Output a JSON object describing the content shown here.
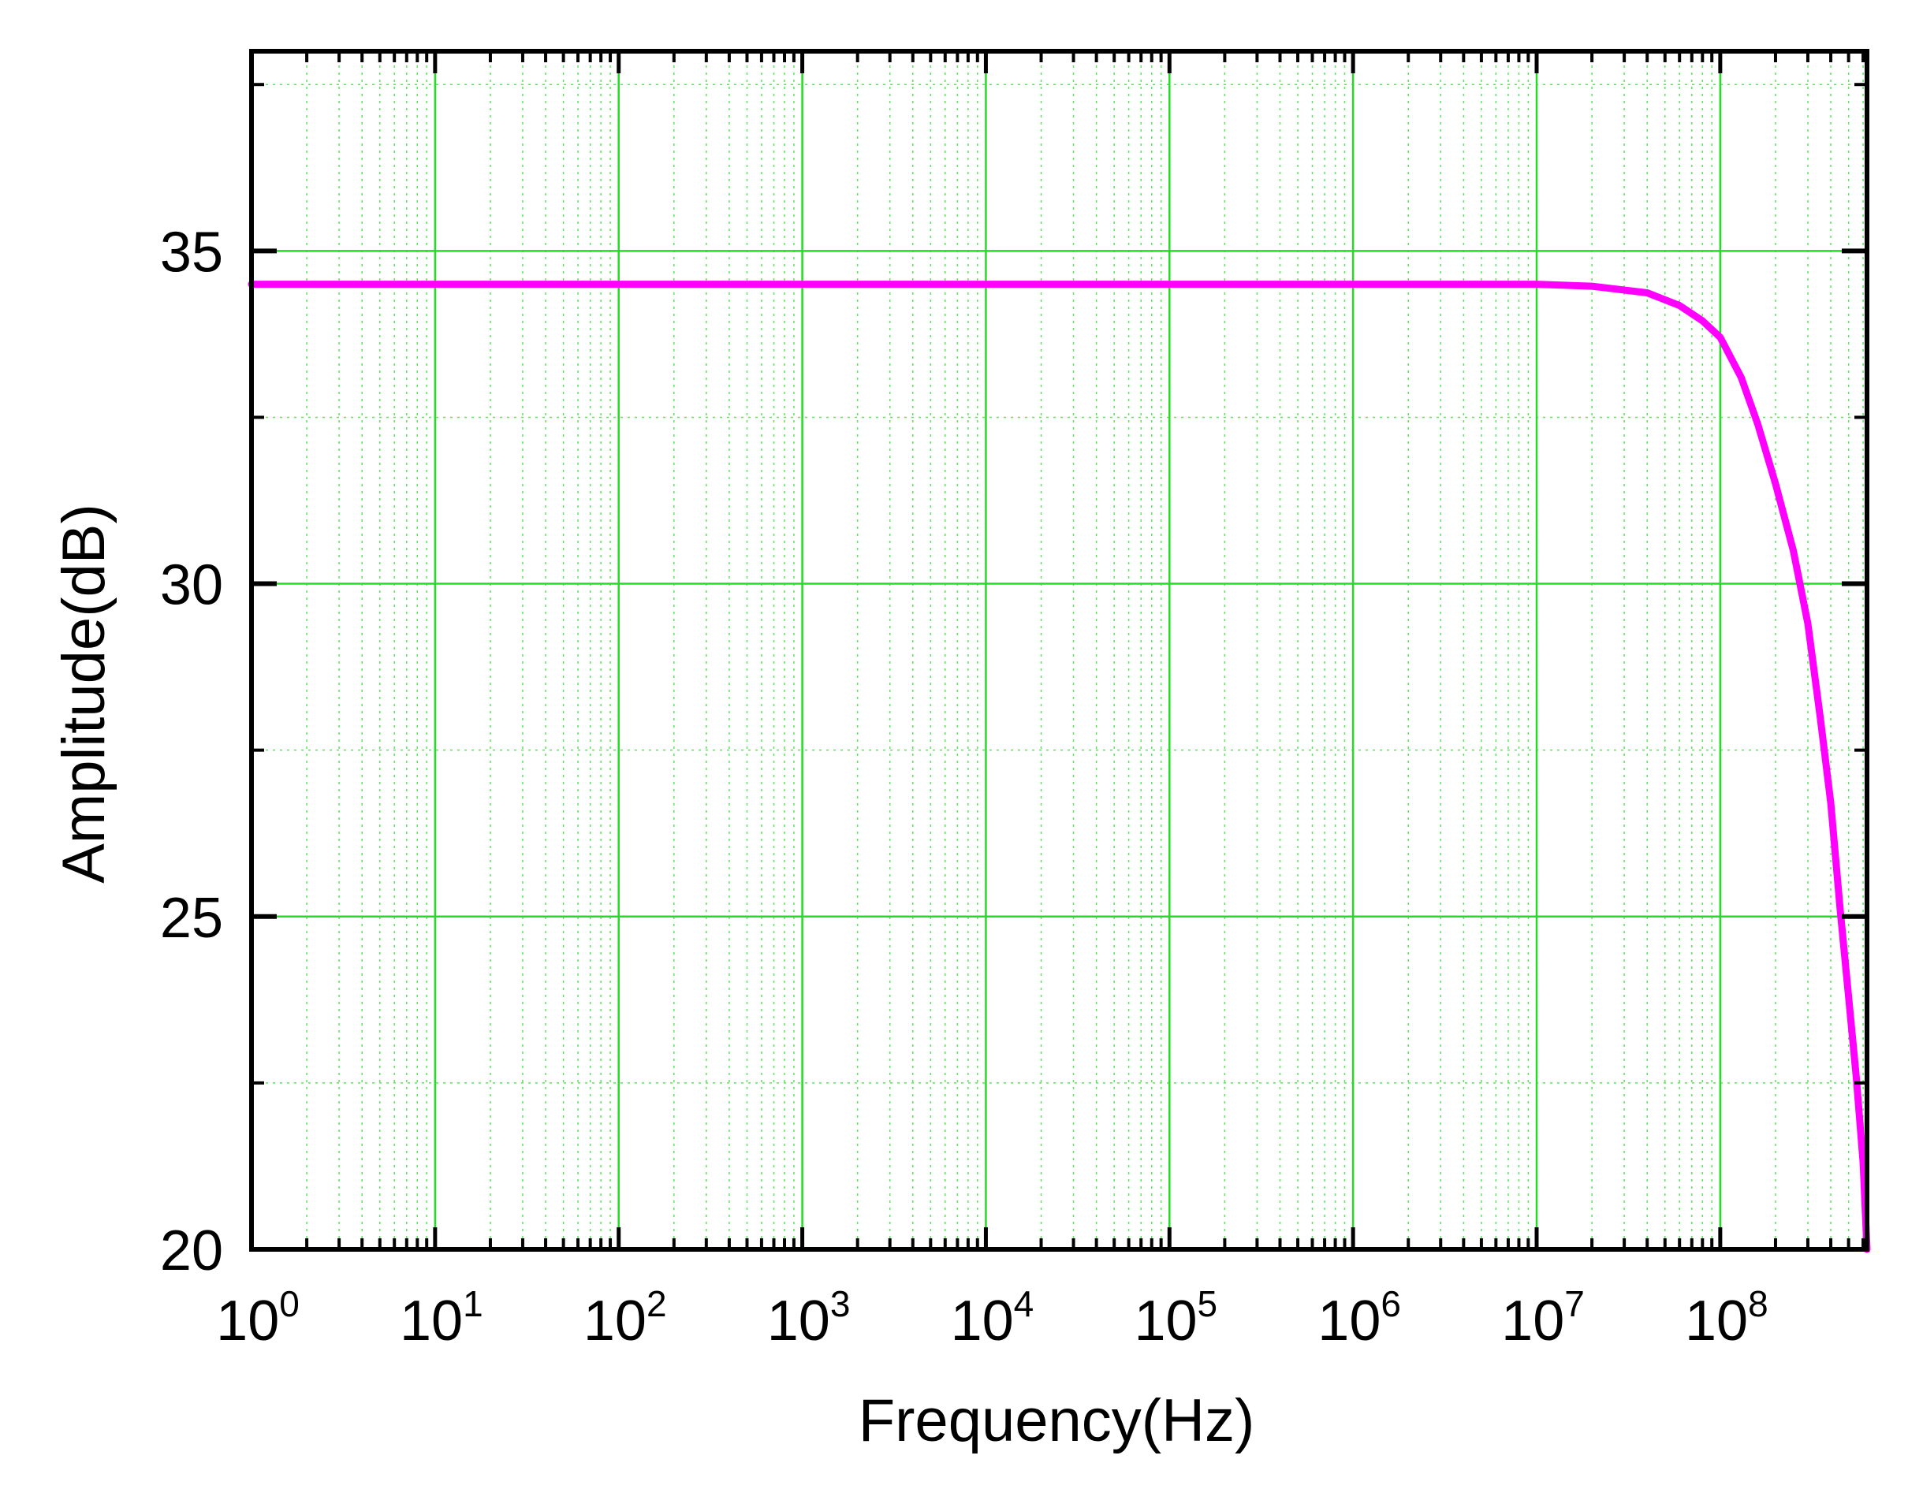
{
  "chart_data": {
    "type": "line",
    "title": "",
    "xlabel": "Frequency(Hz)",
    "ylabel": "Amplitude(dB)",
    "xscale": "log",
    "xlim": [
      1,
      630000000.0
    ],
    "ylim": [
      20,
      38
    ],
    "grid": true,
    "grid_color": "#22dd22",
    "x_ticks": [
      {
        "base": "10",
        "exp": "0",
        "value": 1
      },
      {
        "base": "10",
        "exp": "1",
        "value": 10
      },
      {
        "base": "10",
        "exp": "2",
        "value": 100
      },
      {
        "base": "10",
        "exp": "3",
        "value": 1000
      },
      {
        "base": "10",
        "exp": "4",
        "value": 10000
      },
      {
        "base": "10",
        "exp": "5",
        "value": 100000
      },
      {
        "base": "10",
        "exp": "6",
        "value": 1000000
      },
      {
        "base": "10",
        "exp": "7",
        "value": 10000000
      },
      {
        "base": "10",
        "exp": "8",
        "value": 100000000
      }
    ],
    "y_ticks": [
      {
        "label": "20",
        "value": 20
      },
      {
        "label": "25",
        "value": 25
      },
      {
        "label": "30",
        "value": 30
      },
      {
        "label": "35",
        "value": 35
      }
    ],
    "series": [
      {
        "color": "#ff00ff",
        "x": [
          1,
          10,
          100,
          1000,
          10000,
          100000,
          1000000,
          10000000.0,
          20000000.0,
          40000000.0,
          60000000.0,
          80000000.0,
          100000000.0,
          130000000.0,
          160000000.0,
          200000000.0,
          250000000.0,
          300000000.0,
          350000000.0,
          400000000.0,
          450000000.0,
          500000000.0,
          550000000.0,
          600000000.0,
          630000000.0
        ],
        "y": [
          34.5,
          34.5,
          34.5,
          34.5,
          34.5,
          34.5,
          34.5,
          34.5,
          34.47,
          34.37,
          34.18,
          33.95,
          33.7,
          33.1,
          32.4,
          31.5,
          30.5,
          29.4,
          28.0,
          26.7,
          25.1,
          23.8,
          22.6,
          21.3,
          20.0
        ]
      }
    ]
  }
}
